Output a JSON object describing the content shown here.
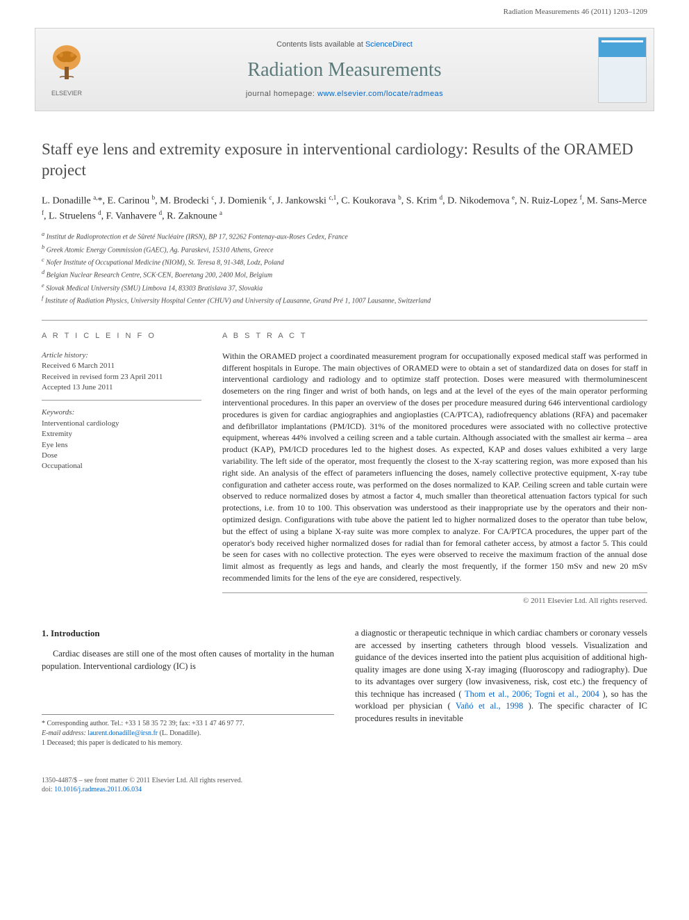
{
  "header": {
    "citation": "Radiation Measurements 46 (2011) 1203–1209"
  },
  "banner": {
    "contents_prefix": "Contents lists available at ",
    "contents_link": "ScienceDirect",
    "journal_title": "Radiation Measurements",
    "homepage_prefix": "journal homepage: ",
    "homepage_link": "www.elsevier.com/locate/radmeas",
    "publisher_name": "ELSEVIER"
  },
  "article": {
    "title": "Staff eye lens and extremity exposure in interventional cardiology: Results of the ORAMED project",
    "authors_html": "L. Donadille <sup>a,</sup>*, E. Carinou <sup>b</sup>, M. Brodecki <sup>c</sup>, J. Domienik <sup>c</sup>, J. Jankowski <sup>c,1</sup>, C. Koukorava <sup>b</sup>, S. Krim <sup>d</sup>, D. Nikodemova <sup>e</sup>, N. Ruiz-Lopez <sup>f</sup>, M. Sans-Merce <sup>f</sup>, L. Struelens <sup>d</sup>, F. Vanhavere <sup>d</sup>, R. Zaknoune <sup>a</sup>",
    "affiliations": [
      "a Institut de Radioprotection et de Sûreté Nucléaire (IRSN), BP 17, 92262 Fontenay-aux-Roses Cedex, France",
      "b Greek Atomic Energy Commission (GAEC), Ag. Paraskevi, 15310 Athens, Greece",
      "c Nofer Institute of Occupational Medicine (NIOM), St. Teresa 8, 91-348, Lodz, Poland",
      "d Belgian Nuclear Research Centre, SCK·CEN, Boeretang 200, 2400 Mol, Belgium",
      "e Slovak Medical University (SMU) Limbova 14, 83303 Bratislava 37, Slovakia",
      "f Institute of Radiation Physics, University Hospital Center (CHUV) and University of Lausanne, Grand Pré 1, 1007 Lausanne, Switzerland"
    ]
  },
  "article_info": {
    "label": "A R T I C L E   I N F O",
    "history_label": "Article history:",
    "received": "Received 6 March 2011",
    "revised": "Received in revised form 23 April 2011",
    "accepted": "Accepted 13 June 2011",
    "keywords_label": "Keywords:",
    "keywords": [
      "Interventional cardiology",
      "Extremity",
      "Eye lens",
      "Dose",
      "Occupational"
    ]
  },
  "abstract": {
    "label": "A B S T R A C T",
    "text": "Within the ORAMED project a coordinated measurement program for occupationally exposed medical staff was performed in different hospitals in Europe. The main objectives of ORAMED were to obtain a set of standardized data on doses for staff in interventional cardiology and radiology and to optimize staff protection. Doses were measured with thermoluminescent dosemeters on the ring finger and wrist of both hands, on legs and at the level of the eyes of the main operator performing interventional procedures. In this paper an overview of the doses per procedure measured during 646 interventional cardiology procedures is given for cardiac angiographies and angioplasties (CA/PTCA), radiofrequency ablations (RFA) and pacemaker and defibrillator implantations (PM/ICD). 31% of the monitored procedures were associated with no collective protective equipment, whereas 44% involved a ceiling screen and a table curtain. Although associated with the smallest air kerma – area product (KAP), PM/ICD procedures led to the highest doses. As expected, KAP and doses values exhibited a very large variability. The left side of the operator, most frequently the closest to the X-ray scattering region, was more exposed than his right side. An analysis of the effect of parameters influencing the doses, namely collective protective equipment, X-ray tube configuration and catheter access route, was performed on the doses normalized to KAP. Ceiling screen and table curtain were observed to reduce normalized doses by atmost a factor 4, much smaller than theoretical attenuation factors typical for such protections, i.e. from 10 to 100. This observation was understood as their inappropriate use by the operators and their non-optimized design. Configurations with tube above the patient led to higher normalized doses to the operator than tube below, but the effect of using a biplane X-ray suite was more complex to analyze. For CA/PTCA procedures, the upper part of the operator's body received higher normalized doses for radial than for femoral catheter access, by atmost a factor 5. This could be seen for cases with no collective protection. The eyes were observed to receive the maximum fraction of the annual dose limit almost as frequently as legs and hands, and clearly the most frequently, if the former 150 mSv and new 20 mSv recommended limits for the lens of the eye are considered, respectively.",
    "copyright": "© 2011 Elsevier Ltd. All rights reserved."
  },
  "body": {
    "section_heading": "1. Introduction",
    "col1": "Cardiac diseases are still one of the most often causes of mortality in the human population. Interventional cardiology (IC) is",
    "col2_part1": "a diagnostic or therapeutic technique in which cardiac chambers or coronary vessels are accessed by inserting catheters through blood vessels. Visualization and guidance of the devices inserted into the patient plus acquisition of additional high-quality images are done using X-ray imaging (fluoroscopy and radiography). Due to its advantages over surgery (low invasiveness, risk, cost etc.) the frequency of this technique has increased (",
    "col2_link1": "Thom et al., 2006; Togni et al., 2004",
    "col2_part2": "), so has the workload per physician (",
    "col2_link2": "Vañó et al., 1998",
    "col2_part3": "). The specific character of IC procedures results in inevitable"
  },
  "footnotes": {
    "corr_label": "* Corresponding author. Tel.: +33 1 58 35 72 39; fax: +33 1 47 46 97 77.",
    "email_label": "E-mail address:",
    "email": "laurent.donadille@irsn.fr",
    "email_suffix": " (L. Donadille).",
    "deceased": "1 Deceased; this paper is dedicated to his memory."
  },
  "footer": {
    "line1": "1350-4487/$ – see front matter © 2011 Elsevier Ltd. All rights reserved.",
    "doi_prefix": "doi:",
    "doi": "10.1016/j.radmeas.2011.06.034"
  },
  "colors": {
    "link": "#0066cc",
    "journal_title": "#5a7a7a",
    "text": "#2a2a2a",
    "border": "#999999"
  }
}
